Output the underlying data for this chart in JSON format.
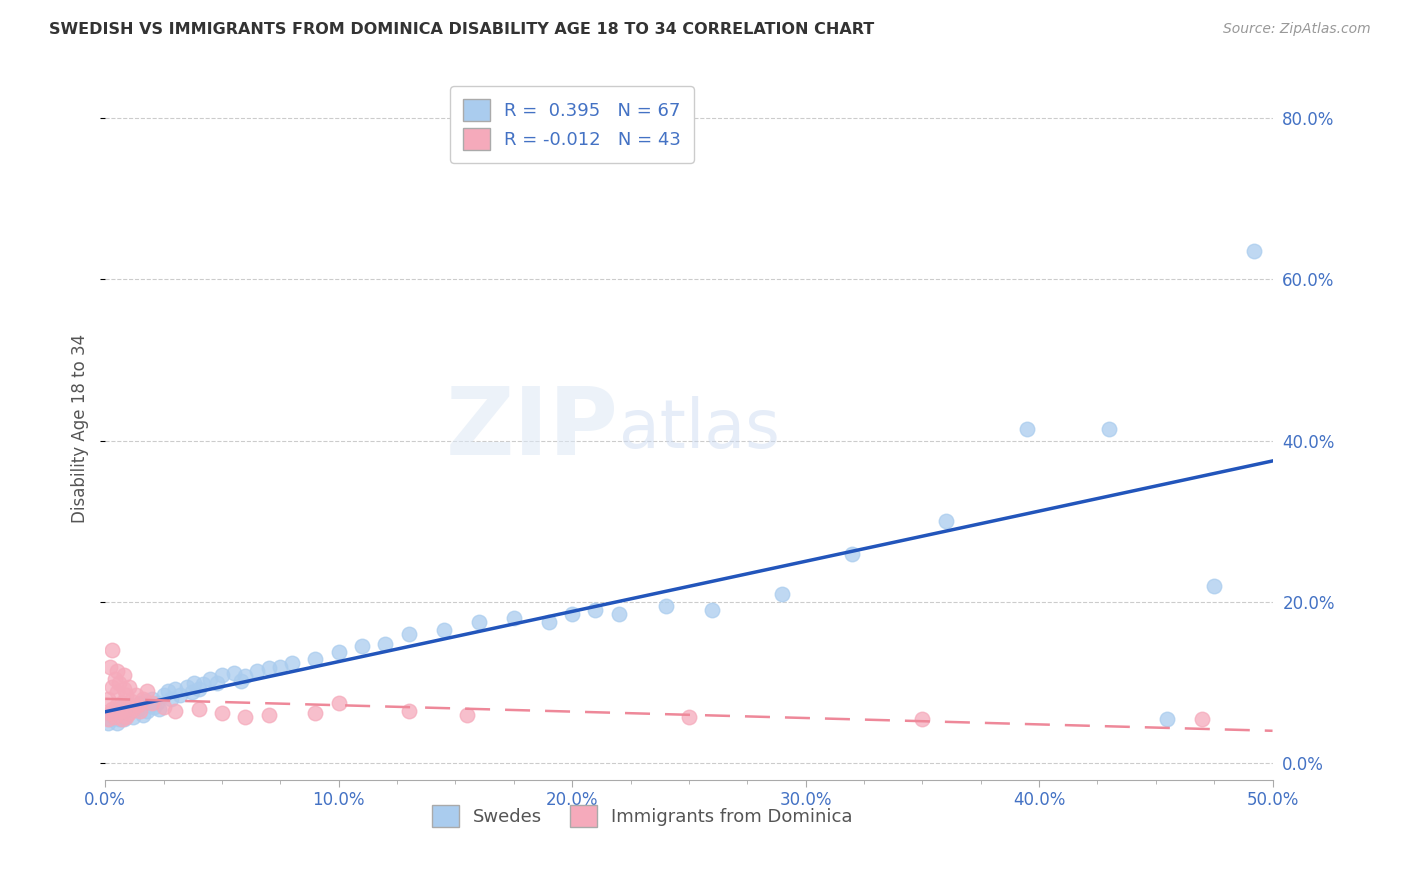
{
  "title": "SWEDISH VS IMMIGRANTS FROM DOMINICA DISABILITY AGE 18 TO 34 CORRELATION CHART",
  "source": "Source: ZipAtlas.com",
  "ylabel": "Disability Age 18 to 34",
  "xlim": [
    0.0,
    0.5
  ],
  "ylim": [
    -0.02,
    0.85
  ],
  "xticks": [
    0.0,
    0.1,
    0.2,
    0.3,
    0.4,
    0.5
  ],
  "yticks": [
    0.0,
    0.2,
    0.4,
    0.6,
    0.8
  ],
  "swedes_R": 0.395,
  "swedes_N": 67,
  "immigrants_R": -0.012,
  "immigrants_N": 43,
  "swedes_color": "#aaccee",
  "immigrants_color": "#f5aabb",
  "swedes_line_color": "#2255bb",
  "immigrants_line_color": "#ee8899",
  "swedes_x": [
    0.001,
    0.002,
    0.003,
    0.004,
    0.004,
    0.005,
    0.006,
    0.007,
    0.007,
    0.008,
    0.009,
    0.01,
    0.011,
    0.012,
    0.013,
    0.014,
    0.015,
    0.016,
    0.017,
    0.018,
    0.019,
    0.02,
    0.021,
    0.022,
    0.023,
    0.025,
    0.027,
    0.028,
    0.03,
    0.032,
    0.035,
    0.037,
    0.038,
    0.04,
    0.042,
    0.045,
    0.048,
    0.05,
    0.055,
    0.058,
    0.06,
    0.065,
    0.07,
    0.075,
    0.08,
    0.09,
    0.1,
    0.11,
    0.12,
    0.13,
    0.145,
    0.16,
    0.175,
    0.19,
    0.2,
    0.21,
    0.22,
    0.24,
    0.26,
    0.29,
    0.32,
    0.36,
    0.395,
    0.43,
    0.455,
    0.475,
    0.492
  ],
  "swedes_y": [
    0.05,
    0.055,
    0.06,
    0.058,
    0.065,
    0.05,
    0.055,
    0.07,
    0.062,
    0.055,
    0.068,
    0.072,
    0.065,
    0.058,
    0.07,
    0.068,
    0.075,
    0.06,
    0.078,
    0.065,
    0.072,
    0.08,
    0.07,
    0.075,
    0.068,
    0.085,
    0.09,
    0.08,
    0.092,
    0.085,
    0.095,
    0.088,
    0.1,
    0.092,
    0.098,
    0.105,
    0.1,
    0.11,
    0.112,
    0.102,
    0.108,
    0.115,
    0.118,
    0.12,
    0.125,
    0.13,
    0.138,
    0.145,
    0.148,
    0.16,
    0.165,
    0.175,
    0.18,
    0.175,
    0.185,
    0.19,
    0.185,
    0.195,
    0.19,
    0.21,
    0.26,
    0.3,
    0.415,
    0.415,
    0.055,
    0.22,
    0.635
  ],
  "immigrants_x": [
    0.001,
    0.001,
    0.002,
    0.002,
    0.003,
    0.003,
    0.003,
    0.004,
    0.004,
    0.005,
    0.005,
    0.005,
    0.006,
    0.006,
    0.007,
    0.007,
    0.008,
    0.008,
    0.009,
    0.009,
    0.01,
    0.01,
    0.011,
    0.012,
    0.013,
    0.014,
    0.015,
    0.016,
    0.018,
    0.02,
    0.025,
    0.03,
    0.04,
    0.05,
    0.06,
    0.07,
    0.09,
    0.1,
    0.13,
    0.155,
    0.25,
    0.35,
    0.47
  ],
  "immigrants_y": [
    0.055,
    0.08,
    0.062,
    0.12,
    0.068,
    0.095,
    0.14,
    0.058,
    0.105,
    0.072,
    0.115,
    0.088,
    0.065,
    0.1,
    0.055,
    0.075,
    0.092,
    0.11,
    0.058,
    0.085,
    0.062,
    0.095,
    0.078,
    0.068,
    0.085,
    0.072,
    0.065,
    0.08,
    0.09,
    0.075,
    0.07,
    0.065,
    0.068,
    0.062,
    0.058,
    0.06,
    0.062,
    0.075,
    0.065,
    0.06,
    0.058,
    0.055,
    0.055
  ]
}
